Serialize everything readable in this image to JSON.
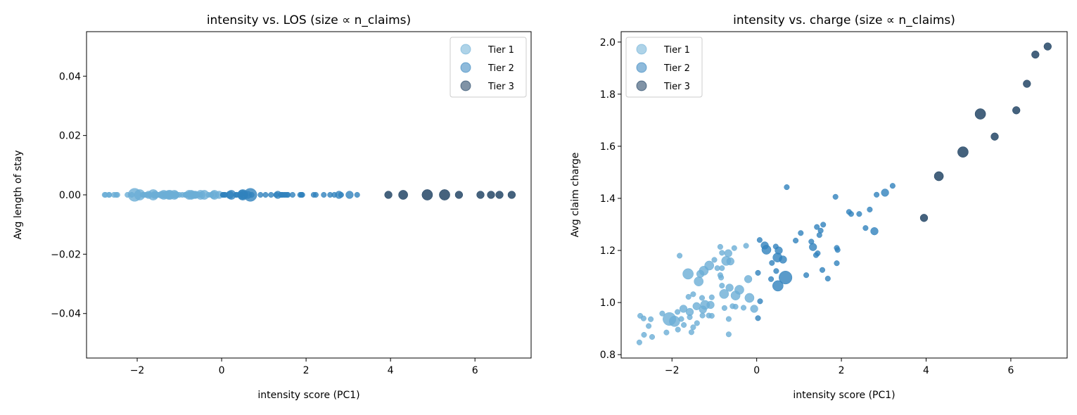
{
  "chart_data": [
    {
      "type": "scatter",
      "title": "intensity vs. LOS (size ∝ n_claims)",
      "xlabel": "intensity score (PC1)",
      "ylabel": "Avg length of stay",
      "xlim": [
        -3.2,
        7.33
      ],
      "ylim": [
        -0.055,
        0.055
      ],
      "xticks": [
        -2,
        0,
        2,
        4,
        6
      ],
      "xtick_labels": [
        "−2",
        "0",
        "2",
        "4",
        "6"
      ],
      "yticks": [
        0.04,
        0.02,
        0.0,
        -0.02,
        -0.04
      ],
      "ytick_labels": [
        "0.04",
        "0.02",
        "0.00",
        "−0.02",
        "−0.04"
      ],
      "y_field": "los",
      "grid": false,
      "legend_position": "top-right"
    },
    {
      "type": "scatter",
      "title": "intensity vs. charge (size ∝ n_claims)",
      "xlabel": "intensity score (PC1)",
      "ylabel": "Avg claim charge",
      "xlim": [
        -3.2,
        7.33
      ],
      "ylim": [
        0.787,
        2.04
      ],
      "xticks": [
        -2,
        0,
        2,
        4,
        6
      ],
      "xtick_labels": [
        "−2",
        "0",
        "2",
        "4",
        "6"
      ],
      "yticks": [
        0.8,
        1.0,
        1.2,
        1.4,
        1.6,
        1.8,
        2.0
      ],
      "ytick_labels": [
        "0.8",
        "1.0",
        "1.2",
        "1.4",
        "1.6",
        "1.8",
        "2.0"
      ],
      "y_field": "charge",
      "grid": false,
      "legend_position": "top-left"
    }
  ],
  "series": [
    {
      "name": "Tier 1",
      "color": "#6baed6",
      "points": [
        [
          -1.82,
          1.18,
          10
        ],
        [
          -1.62,
          1.11,
          40
        ],
        [
          -1.33,
          1.11,
          20
        ],
        [
          -1.25,
          1.122,
          30
        ],
        [
          -1.12,
          1.142,
          30
        ],
        [
          -1.37,
          1.081,
          30
        ],
        [
          -1.0,
          1.164,
          10
        ],
        [
          -0.93,
          1.132,
          10
        ],
        [
          -0.82,
          1.132,
          10
        ],
        [
          -0.86,
          1.214,
          10
        ],
        [
          -0.82,
          1.191,
          10
        ],
        [
          -0.67,
          1.189,
          20
        ],
        [
          -0.53,
          1.209,
          10
        ],
        [
          -0.25,
          1.218,
          10
        ],
        [
          -0.72,
          1.16,
          30
        ],
        [
          -0.62,
          1.158,
          20
        ],
        [
          -0.86,
          1.105,
          10
        ],
        [
          -0.84,
          1.096,
          10
        ],
        [
          -0.2,
          1.09,
          20
        ],
        [
          -0.82,
          1.065,
          10
        ],
        [
          -0.64,
          1.057,
          20
        ],
        [
          -0.41,
          1.049,
          30
        ],
        [
          -0.77,
          1.033,
          30
        ],
        [
          -0.5,
          1.027,
          30
        ],
        [
          -0.17,
          1.018,
          30
        ],
        [
          -0.06,
          0.976,
          20
        ],
        [
          -0.31,
          0.98,
          10
        ],
        [
          -0.5,
          0.984,
          10
        ],
        [
          -0.57,
          0.986,
          10
        ],
        [
          -0.76,
          0.979,
          10
        ],
        [
          -0.66,
          0.937,
          10
        ],
        [
          -0.66,
          0.878,
          10
        ],
        [
          -1.61,
          1.022,
          10
        ],
        [
          -1.5,
          1.032,
          10
        ],
        [
          -1.29,
          1.018,
          10
        ],
        [
          -1.06,
          1.02,
          10
        ],
        [
          -1.42,
          0.986,
          20
        ],
        [
          -1.22,
          0.991,
          30
        ],
        [
          -1.09,
          0.991,
          20
        ],
        [
          -1.27,
          0.973,
          20
        ],
        [
          -1.28,
          0.95,
          10
        ],
        [
          -1.13,
          0.95,
          10
        ],
        [
          -1.06,
          0.949,
          10
        ],
        [
          -1.73,
          0.976,
          20
        ],
        [
          -1.58,
          0.964,
          20
        ],
        [
          -1.58,
          0.944,
          10
        ],
        [
          -1.87,
          0.964,
          10
        ],
        [
          -2.06,
          0.937,
          60
        ],
        [
          -1.94,
          0.928,
          40
        ],
        [
          -2.23,
          0.958,
          10
        ],
        [
          -1.78,
          0.937,
          10
        ],
        [
          -1.72,
          0.914,
          10
        ],
        [
          -1.86,
          0.896,
          10
        ],
        [
          -2.13,
          0.885,
          10
        ],
        [
          -1.41,
          0.921,
          10
        ],
        [
          -1.5,
          0.905,
          10
        ],
        [
          -1.54,
          0.886,
          10
        ],
        [
          -2.75,
          0.949,
          10
        ],
        [
          -2.67,
          0.939,
          10
        ],
        [
          -2.5,
          0.936,
          10
        ],
        [
          -2.55,
          0.91,
          10
        ],
        [
          -2.66,
          0.876,
          10
        ],
        [
          -2.47,
          0.868,
          10
        ],
        [
          -2.77,
          0.847,
          10
        ]
      ]
    },
    {
      "name": "Tier 2",
      "color": "#3182bd",
      "points": [
        [
          0.71,
          1.443,
          10
        ],
        [
          1.86,
          1.406,
          10
        ],
        [
          3.03,
          1.422,
          20
        ],
        [
          3.21,
          1.448,
          10
        ],
        [
          2.83,
          1.414,
          10
        ],
        [
          2.18,
          1.348,
          10
        ],
        [
          2.23,
          1.34,
          10
        ],
        [
          2.42,
          1.34,
          10
        ],
        [
          2.67,
          1.357,
          10
        ],
        [
          2.57,
          1.286,
          10
        ],
        [
          2.78,
          1.274,
          20
        ],
        [
          1.42,
          1.29,
          10
        ],
        [
          1.57,
          1.299,
          10
        ],
        [
          1.51,
          1.276,
          10
        ],
        [
          1.48,
          1.259,
          10
        ],
        [
          1.04,
          1.267,
          10
        ],
        [
          0.92,
          1.238,
          10
        ],
        [
          1.29,
          1.234,
          10
        ],
        [
          1.33,
          1.213,
          20
        ],
        [
          1.44,
          1.189,
          10
        ],
        [
          1.4,
          1.182,
          10
        ],
        [
          1.89,
          1.21,
          10
        ],
        [
          1.91,
          1.202,
          10
        ],
        [
          1.89,
          1.151,
          10
        ],
        [
          1.55,
          1.125,
          10
        ],
        [
          1.68,
          1.092,
          10
        ],
        [
          1.17,
          1.105,
          10
        ],
        [
          0.07,
          1.24,
          10
        ],
        [
          0.19,
          1.219,
          20
        ],
        [
          0.23,
          1.203,
          30
        ],
        [
          0.45,
          1.215,
          10
        ],
        [
          0.52,
          1.2,
          20
        ],
        [
          0.49,
          1.173,
          30
        ],
        [
          0.62,
          1.165,
          20
        ],
        [
          0.36,
          1.152,
          10
        ],
        [
          0.03,
          1.114,
          10
        ],
        [
          0.46,
          1.121,
          10
        ],
        [
          0.34,
          1.09,
          10
        ],
        [
          0.68,
          1.096,
          60
        ],
        [
          0.5,
          1.064,
          40
        ],
        [
          0.08,
          1.005,
          10
        ],
        [
          0.03,
          0.94,
          10
        ]
      ]
    },
    {
      "name": "Tier 3",
      "color": "#173b5c",
      "points": [
        [
          3.95,
          1.325,
          20
        ],
        [
          4.3,
          1.485,
          30
        ],
        [
          4.87,
          1.578,
          40
        ],
        [
          5.28,
          1.724,
          40
        ],
        [
          5.62,
          1.637,
          20
        ],
        [
          6.13,
          1.738,
          20
        ],
        [
          6.38,
          1.84,
          20
        ],
        [
          6.58,
          1.952,
          20
        ],
        [
          6.87,
          1.983,
          20
        ]
      ]
    }
  ]
}
